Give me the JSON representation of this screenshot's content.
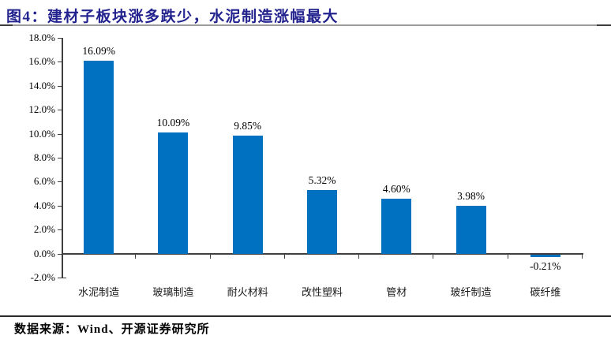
{
  "header": {
    "title": "图4：建材子板块涨多跌少，水泥制造涨幅最大"
  },
  "footer": {
    "source": "数据来源：Wind、开源证券研究所"
  },
  "colors": {
    "bar": "#0070C0",
    "title": "#23238f",
    "axis": "#3f3f3f"
  },
  "chart_data": {
    "type": "bar",
    "title": "图4：建材子板块涨多跌少，水泥制造涨幅最大",
    "categories": [
      "水泥制造",
      "玻璃制造",
      "耐火材料",
      "改性塑料",
      "管材",
      "玻纤制造",
      "碳纤维"
    ],
    "values": [
      16.09,
      10.09,
      9.85,
      5.32,
      4.6,
      3.98,
      -0.21
    ],
    "value_labels": [
      "16.09%",
      "10.09%",
      "9.85%",
      "5.32%",
      "4.60%",
      "3.98%",
      "-0.21%"
    ],
    "y_ticks": [
      "18.0%",
      "16.0%",
      "14.0%",
      "12.0%",
      "10.0%",
      "8.0%",
      "6.0%",
      "4.0%",
      "2.0%",
      "0.0%",
      "-2.0%"
    ],
    "ylim": [
      -2,
      18
    ],
    "y_step": 2,
    "xlabel": "",
    "ylabel": "",
    "grid": false,
    "legend": "none",
    "bar_color": "#0070C0"
  }
}
